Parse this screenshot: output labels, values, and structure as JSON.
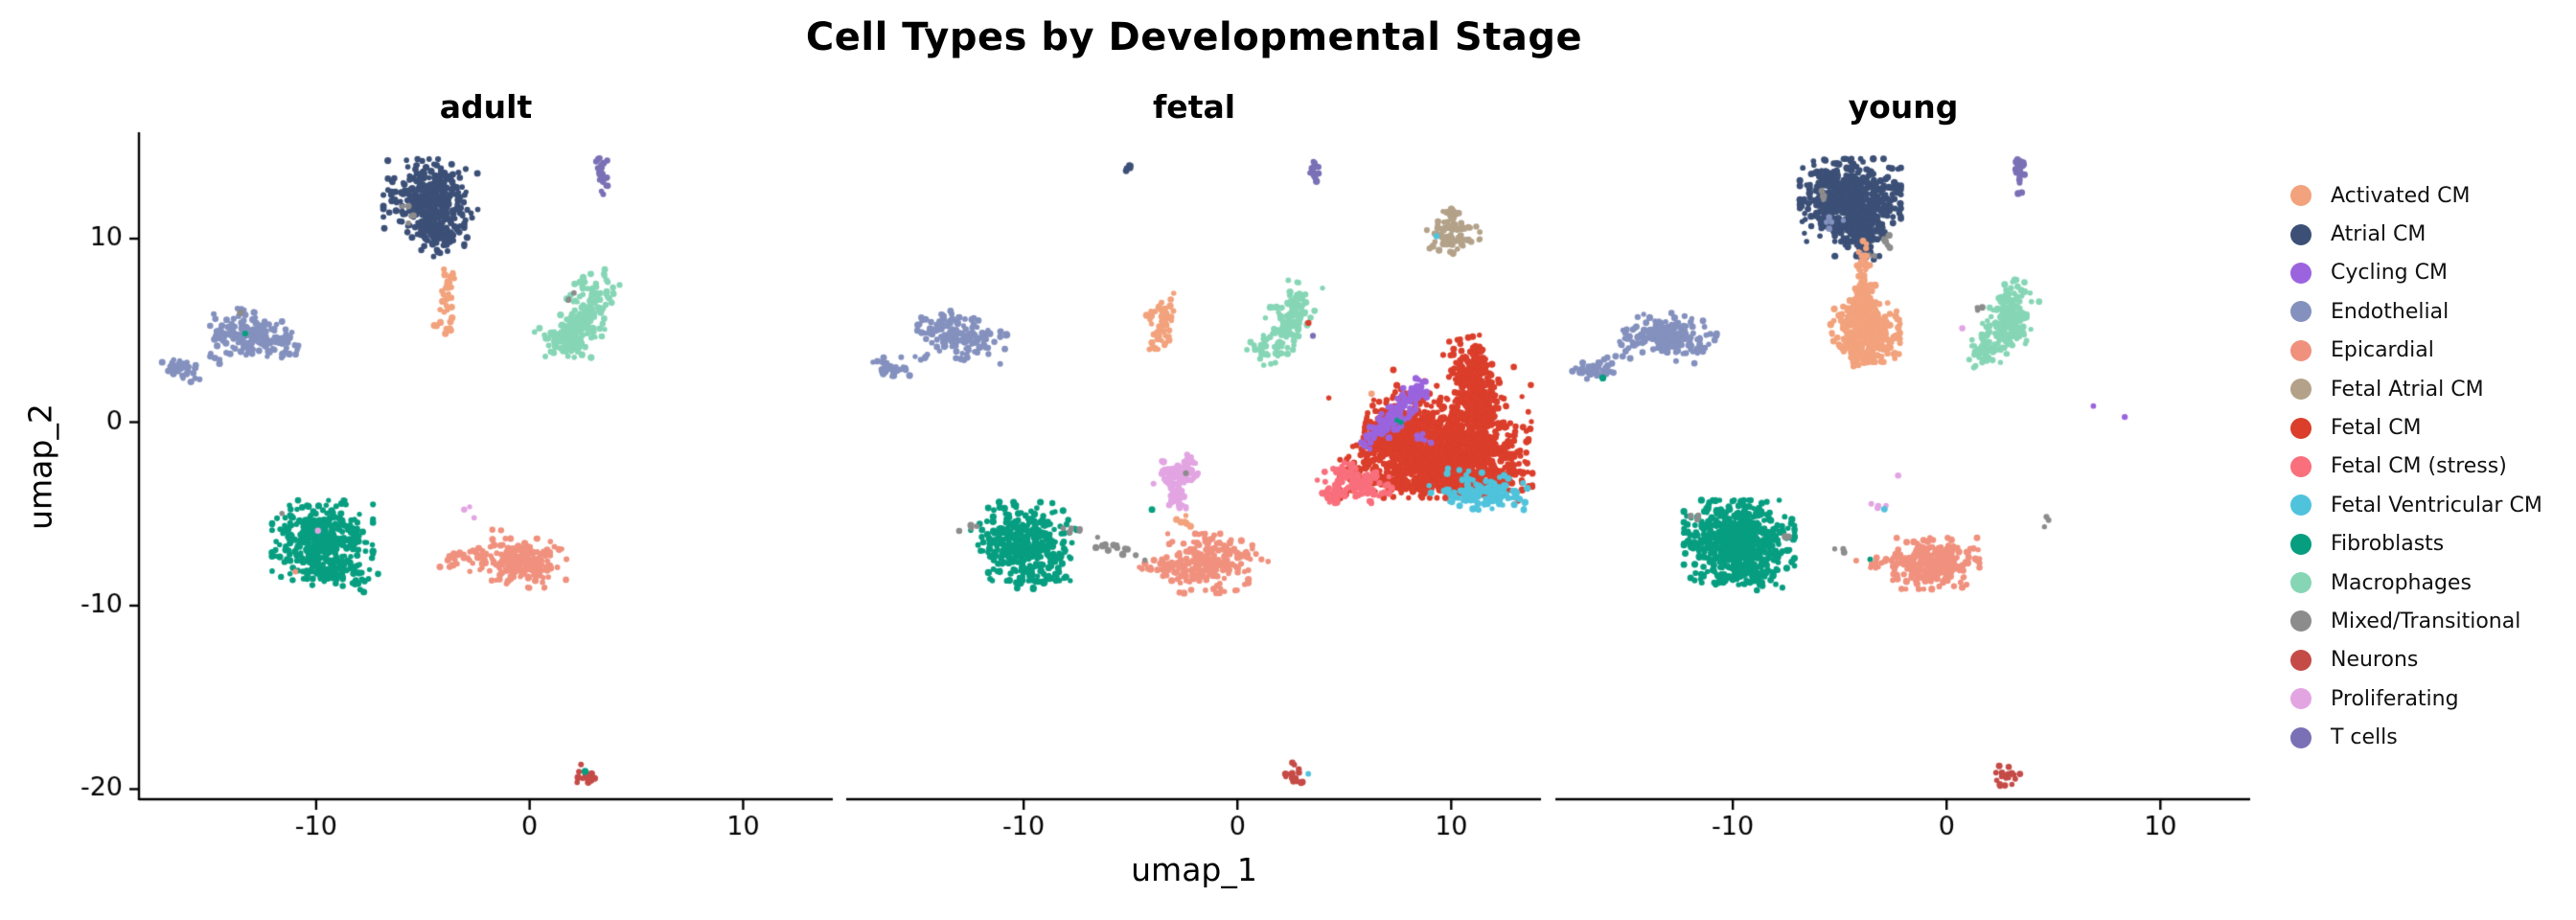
{
  "title": "Cell Types by Developmental Stage",
  "axes": {
    "x_label": "umap_1",
    "y_label": "umap_2",
    "x_ticks": [
      -10,
      0,
      10
    ],
    "y_ticks": [
      10,
      0,
      -10,
      -20
    ]
  },
  "panels": [
    {
      "title": "adult"
    },
    {
      "title": "fetal"
    },
    {
      "title": "young"
    }
  ],
  "legend": {
    "items": [
      "Activated CM",
      "Atrial CM",
      "Cycling CM",
      "Endothelial",
      "Epicardial",
      "Fetal Atrial CM",
      "Fetal CM",
      "Fetal CM (stress)",
      "Fetal Ventricular CM",
      "Fibroblasts",
      "Macrophages",
      "Mixed/Transitional",
      "Neurons",
      "Proliferating",
      "T cells"
    ]
  },
  "colors": {
    "Activated CM": "#F2A27C",
    "Atrial CM": "#3C5077",
    "Cycling CM": "#9B64DE",
    "Endothelial": "#8491BE",
    "Epicardial": "#F0917E",
    "Fetal Atrial CM": "#B3A289",
    "Fetal CM": "#DB3E2B",
    "Fetal CM (stress)": "#F96F7C",
    "Fetal Ventricular CM": "#50C3DC",
    "Fibroblasts": "#079E80",
    "Macrophages": "#86D6B6",
    "Mixed/Transitional": "#8C8C8C",
    "Neurons": "#C54B47",
    "Proliferating": "#E2A5E2",
    "T cells": "#7A70B6"
  },
  "chart_data": {
    "type": "scatter",
    "subplots": [
      "adult",
      "fetal",
      "young"
    ],
    "x_range": [
      -18.3,
      14.2
    ],
    "y_range": [
      -20.5,
      15.8
    ],
    "point_radius_px": 3.1,
    "cluster_format": "[cell_type, center_x, center_y, sd_x, sd_y, rotation_deg, n_points]",
    "clusters": {
      "adult": [
        [
          "Atrial CM",
          -4.6,
          12.2,
          1.0,
          0.95,
          0,
          320
        ],
        [
          "Atrial CM",
          -4.3,
          10.6,
          0.55,
          0.7,
          0,
          90
        ],
        [
          "Atrial CM",
          -4.2,
          9.7,
          0.2,
          0.35,
          0,
          16
        ],
        [
          "Mixed/Transitional",
          -5.8,
          11.9,
          0.1,
          0.12,
          0,
          2
        ],
        [
          "Mixed/Transitional",
          -5.5,
          11.0,
          0.08,
          0.16,
          0,
          3
        ],
        [
          "T cells",
          3.4,
          13.6,
          0.16,
          0.55,
          0,
          22
        ],
        [
          "Activated CM",
          -3.8,
          7.6,
          0.14,
          0.85,
          0,
          26
        ],
        [
          "Activated CM",
          -4.0,
          5.4,
          0.35,
          0.6,
          0,
          12
        ],
        [
          "Macrophages",
          2.7,
          6.1,
          0.5,
          1.05,
          -20,
          150
        ],
        [
          "Macrophages",
          1.5,
          4.6,
          0.5,
          0.45,
          25,
          50
        ],
        [
          "Macrophages",
          2.0,
          4.2,
          0.35,
          0.3,
          0,
          30
        ],
        [
          "Mixed/Transitional",
          2.0,
          6.7,
          0.22,
          0.2,
          0,
          3
        ],
        [
          "Endothelial",
          -12.9,
          4.7,
          0.95,
          0.55,
          -15,
          190
        ],
        [
          "Endothelial",
          -16.3,
          2.9,
          0.45,
          0.28,
          -10,
          35
        ],
        [
          "Endothelial",
          -15.0,
          3.6,
          0.45,
          0.25,
          -20,
          7
        ],
        [
          "Mixed/Transitional",
          -13.5,
          5.9,
          0.05,
          0.05,
          0,
          1
        ],
        [
          "Fibroblasts",
          -13.4,
          4.9,
          0.04,
          0.04,
          0,
          1
        ],
        [
          "Fibroblasts",
          -9.7,
          -6.4,
          1.05,
          0.95,
          0,
          370
        ],
        [
          "Fibroblasts",
          -9.3,
          -8.2,
          0.8,
          0.45,
          0,
          60
        ],
        [
          "Fibroblasts",
          -8.0,
          -8.7,
          0.4,
          0.28,
          0,
          10
        ],
        [
          "Mixed/Transitional",
          -11.6,
          -4.9,
          0.06,
          0.06,
          0,
          1
        ],
        [
          "Proliferating",
          -9.9,
          -5.9,
          0.04,
          0.04,
          0,
          1
        ],
        [
          "Epicardial",
          -10.9,
          -8.2,
          0.05,
          0.05,
          0,
          1
        ],
        [
          "Epicardial",
          -0.3,
          -7.7,
          0.9,
          0.6,
          0,
          200
        ],
        [
          "Epicardial",
          -2.6,
          -7.5,
          0.8,
          0.28,
          0,
          40
        ],
        [
          "Epicardial",
          -1.9,
          -6.2,
          0.25,
          0.3,
          0,
          4
        ],
        [
          "Proliferating",
          -3.1,
          -4.8,
          0.14,
          0.16,
          0,
          2
        ],
        [
          "Proliferating",
          -2.6,
          -5.3,
          0.06,
          0.06,
          0,
          1
        ],
        [
          "Neurons",
          2.7,
          -19.3,
          0.26,
          0.33,
          0,
          16
        ],
        [
          "Fibroblasts",
          2.6,
          -19.0,
          0.04,
          0.04,
          0,
          1
        ]
      ],
      "fetal": [
        [
          "Atrial CM",
          -5.2,
          13.9,
          0.16,
          0.12,
          0,
          5
        ],
        [
          "T cells",
          3.6,
          13.6,
          0.15,
          0.5,
          0,
          14
        ],
        [
          "Fetal Atrial CM",
          10.1,
          10.4,
          0.55,
          0.55,
          0,
          65
        ],
        [
          "Fetal Atrial CM",
          10.15,
          11.4,
          0.14,
          0.35,
          0,
          10
        ],
        [
          "Fetal Atrial CM",
          10.0,
          9.4,
          0.13,
          0.3,
          0,
          8
        ],
        [
          "Fetal Ventricular CM",
          9.3,
          10.2,
          0.05,
          0.05,
          0,
          1
        ],
        [
          "Endothelial",
          -12.9,
          4.7,
          0.95,
          0.55,
          -15,
          150
        ],
        [
          "Endothelial",
          -16.3,
          2.9,
          0.45,
          0.28,
          -10,
          30
        ],
        [
          "Endothelial",
          -15.0,
          3.6,
          0.45,
          0.25,
          -20,
          6
        ],
        [
          "Activated CM",
          -3.5,
          5.5,
          0.35,
          0.68,
          0,
          45
        ],
        [
          "Activated CM",
          -3.8,
          4.1,
          0.25,
          0.3,
          0,
          6
        ],
        [
          "Macrophages",
          2.4,
          5.4,
          0.5,
          1.0,
          -15,
          110
        ],
        [
          "Macrophages",
          1.4,
          3.9,
          0.4,
          0.38,
          20,
          25
        ],
        [
          "Fetal CM",
          3.3,
          5.3,
          0.05,
          0.05,
          0,
          1
        ],
        [
          "T cells",
          3.5,
          4.7,
          0.05,
          0.05,
          0,
          1
        ],
        [
          "Fetal CM",
          9.7,
          -1.3,
          1.7,
          1.15,
          -8,
          1150
        ],
        [
          "Fetal CM",
          11.2,
          1.7,
          0.5,
          1.3,
          14,
          300
        ],
        [
          "Fetal CM",
          11.35,
          3.3,
          0.18,
          0.42,
          8,
          40
        ],
        [
          "Fetal CM",
          9.3,
          -3.0,
          2.0,
          0.5,
          0,
          400
        ],
        [
          "Fetal CM",
          7.4,
          -1.0,
          0.7,
          0.9,
          -30,
          220
        ],
        [
          "Fetal CM",
          9.0,
          0.8,
          2.1,
          1.5,
          0,
          45
        ],
        [
          "Fetal CM (stress)",
          5.5,
          -3.3,
          0.75,
          0.4,
          -22,
          120
        ],
        [
          "Fetal CM (stress)",
          4.5,
          -4.0,
          0.28,
          0.2,
          -20,
          25
        ],
        [
          "Fetal Ventricular CM",
          11.6,
          -3.8,
          0.85,
          0.45,
          -8,
          130
        ],
        [
          "Fetal Ventricular CM",
          9.8,
          -3.9,
          0.6,
          0.2,
          0,
          12
        ],
        [
          "Cycling CM",
          7.4,
          0.45,
          0.26,
          1.0,
          -38,
          135
        ],
        [
          "Cycling CM",
          8.7,
          -0.9,
          0.16,
          0.2,
          0,
          6
        ],
        [
          "Activated CM",
          6.3,
          1.6,
          0.05,
          0.05,
          0,
          1
        ],
        [
          "Fibroblasts",
          7.6,
          0.0,
          0.06,
          0.06,
          0,
          2
        ],
        [
          "Proliferating",
          -2.9,
          -3.1,
          0.42,
          0.5,
          -20,
          90
        ],
        [
          "Proliferating",
          -2.35,
          -2.2,
          0.12,
          0.25,
          0,
          12
        ],
        [
          "Proliferating",
          -2.75,
          -4.3,
          0.3,
          0.22,
          -40,
          22
        ],
        [
          "Mixed/Transitional",
          -2.4,
          -2.7,
          0.06,
          0.06,
          0,
          1
        ],
        [
          "Fibroblasts",
          -4.0,
          -4.8,
          0.04,
          0.04,
          0,
          1
        ],
        [
          "Activated CM",
          -2.5,
          -5.5,
          0.2,
          0.25,
          0,
          7
        ],
        [
          "Fibroblasts",
          -10.0,
          -6.5,
          1.1,
          0.95,
          0,
          350
        ],
        [
          "Fibroblasts",
          -9.6,
          -8.3,
          0.7,
          0.4,
          0,
          50
        ],
        [
          "Mixed/Transitional",
          -12.6,
          -5.8,
          0.22,
          0.15,
          0,
          4
        ],
        [
          "Mixed/Transitional",
          -7.9,
          -5.8,
          0.25,
          0.18,
          0,
          5
        ],
        [
          "Mixed/Transitional",
          -5.7,
          -6.8,
          0.6,
          0.2,
          -22,
          16
        ],
        [
          "Epicardial",
          -1.4,
          -7.7,
          0.85,
          0.72,
          0,
          200
        ],
        [
          "Epicardial",
          -3.4,
          -7.9,
          0.55,
          0.22,
          -10,
          30
        ],
        [
          "Epicardial",
          0.5,
          -7.3,
          0.45,
          0.4,
          0,
          12
        ],
        [
          "Mixed/Transitional",
          -4.35,
          -7.5,
          0.05,
          0.05,
          0,
          1
        ],
        [
          "Neurons",
          2.7,
          -19.3,
          0.28,
          0.33,
          0,
          18
        ],
        [
          "Fetal Ventricular CM",
          3.3,
          -19.2,
          0.05,
          0.05,
          0,
          1
        ]
      ],
      "young": [
        [
          "Atrial CM",
          -4.5,
          12.1,
          1.05,
          1.0,
          0,
          620
        ],
        [
          "Atrial CM",
          -4.1,
          10.4,
          0.5,
          0.6,
          0,
          110
        ],
        [
          "Atrial CM",
          -3.9,
          9.5,
          0.22,
          0.4,
          0,
          30
        ],
        [
          "Endothelial",
          -5.4,
          10.8,
          0.22,
          0.3,
          -30,
          5
        ],
        [
          "Mixed/Transitional",
          -5.8,
          12.3,
          0.12,
          0.25,
          0,
          4
        ],
        [
          "Mixed/Transitional",
          -2.8,
          10.0,
          0.18,
          0.22,
          0,
          5
        ],
        [
          "Mixed/Transitional",
          -3.5,
          9.1,
          0.12,
          0.1,
          0,
          2
        ],
        [
          "Activated CM",
          -3.9,
          8.3,
          0.16,
          0.7,
          0,
          35
        ],
        [
          "Activated CM",
          -3.85,
          6.5,
          0.3,
          0.55,
          0,
          110
        ],
        [
          "Activated CM",
          -3.8,
          4.9,
          0.72,
          0.72,
          0,
          380
        ],
        [
          "Activated CM",
          -4.1,
          3.7,
          0.25,
          0.3,
          0,
          25
        ],
        [
          "T cells",
          3.4,
          13.7,
          0.15,
          0.55,
          0,
          22
        ],
        [
          "Endothelial",
          -13.0,
          4.7,
          0.95,
          0.55,
          -15,
          200
        ],
        [
          "Endothelial",
          -16.4,
          2.8,
          0.48,
          0.3,
          -10,
          40
        ],
        [
          "Endothelial",
          -15.0,
          3.8,
          0.4,
          0.25,
          -20,
          7
        ],
        [
          "Fibroblasts",
          -16.1,
          2.4,
          0.04,
          0.04,
          0,
          1
        ],
        [
          "Macrophages",
          2.9,
          5.5,
          0.5,
          1.0,
          -18,
          190
        ],
        [
          "Macrophages",
          1.8,
          3.9,
          0.45,
          0.38,
          20,
          45
        ],
        [
          "Mixed/Transitional",
          1.5,
          6.2,
          0.15,
          0.12,
          0,
          3
        ],
        [
          "Proliferating",
          0.8,
          5.1,
          0.05,
          0.05,
          0,
          1
        ],
        [
          "Cycling CM",
          6.8,
          0.9,
          0.05,
          0.05,
          0,
          1
        ],
        [
          "Cycling CM",
          8.4,
          0.2,
          0.05,
          0.05,
          0,
          1
        ],
        [
          "Proliferating",
          -2.2,
          -2.9,
          0.06,
          0.06,
          0,
          1
        ],
        [
          "Proliferating",
          -3.1,
          -4.6,
          0.28,
          0.12,
          -20,
          4
        ],
        [
          "Fetal Ventricular CM",
          -2.95,
          -4.75,
          0.04,
          0.04,
          0,
          1
        ],
        [
          "Mixed/Transitional",
          4.6,
          -5.4,
          0.1,
          0.22,
          0,
          3
        ],
        [
          "Fibroblasts",
          -9.7,
          -6.5,
          1.15,
          1.0,
          0,
          600
        ],
        [
          "Fibroblasts",
          -9.2,
          -8.4,
          0.75,
          0.4,
          0,
          70
        ],
        [
          "Mixed/Transitional",
          -11.9,
          -5.2,
          0.15,
          0.1,
          0,
          3
        ],
        [
          "Mixed/Transitional",
          -7.4,
          -6.3,
          0.07,
          0.07,
          0,
          2
        ],
        [
          "Epicardial",
          -0.6,
          -7.7,
          0.95,
          0.62,
          0,
          260
        ],
        [
          "Epicardial",
          -2.7,
          -7.6,
          0.5,
          0.25,
          0,
          20
        ],
        [
          "Fibroblasts",
          -3.5,
          -7.5,
          0.05,
          0.05,
          0,
          1
        ],
        [
          "Epicardial",
          -3.9,
          -7.7,
          0.18,
          0.1,
          0,
          3
        ],
        [
          "Mixed/Transitional",
          -4.9,
          -6.8,
          0.16,
          0.14,
          0,
          3
        ],
        [
          "Neurons",
          2.8,
          -19.3,
          0.28,
          0.33,
          0,
          18
        ]
      ]
    }
  }
}
